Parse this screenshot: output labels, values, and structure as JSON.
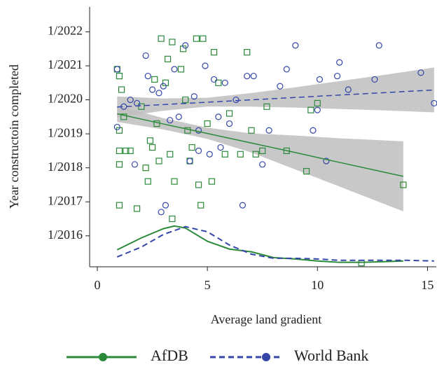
{
  "chart_data": {
    "type": "scatter",
    "x_label": "Average land gradient",
    "y_label": "Year constructoin completed",
    "xlim": [
      -0.35,
      15.4
    ],
    "ylim": [
      2015.09,
      2022.73
    ],
    "xticks": [
      0,
      5,
      10,
      15
    ],
    "yticks": [
      {
        "value": 2016,
        "label": "1/2016"
      },
      {
        "value": 2017,
        "label": "1/2017"
      },
      {
        "value": 2018,
        "label": "1/2018"
      },
      {
        "value": 2019,
        "label": "1/2019"
      },
      {
        "value": 2020,
        "label": "1/2020"
      },
      {
        "value": 2021,
        "label": "1/2021"
      },
      {
        "value": 2022,
        "label": "1/2022"
      }
    ],
    "band_color": "#bebebe",
    "series": [
      {
        "name": "AfDB",
        "color": "#2a8a3a",
        "marker": "square",
        "line_style": "solid",
        "x": [
          0.9,
          1,
          1.1,
          1,
          1.2,
          1,
          1.3,
          1,
          1,
          1.8,
          2.2,
          2.3,
          2.5,
          2.7,
          2.8,
          2.9,
          3.1,
          3.2,
          3.4,
          3.3,
          3.5,
          3.4,
          3.8,
          3.9,
          4,
          4.1,
          4.2,
          4.3,
          4.5,
          4.6,
          4.8,
          4.7,
          5,
          5.2,
          5.3,
          5.5,
          5.8,
          6,
          6.5,
          6.8,
          7,
          7.2,
          7.5,
          7.7,
          8.6,
          9.5,
          9.7,
          10,
          12,
          13.9,
          2,
          2.6,
          1.5,
          2.4
        ],
        "values": [
          2020.9,
          2020.7,
          2020.3,
          2019.1,
          2019.5,
          2018.5,
          2018.5,
          2018.1,
          2016.9,
          2016.8,
          2018.0,
          2017.6,
          2018.6,
          2019.3,
          2018.2,
          2021.8,
          2020.5,
          2021.2,
          2021.7,
          2018.4,
          2017.6,
          2016.5,
          2020.9,
          2021.5,
          2020,
          2019.1,
          2018.2,
          2018.6,
          2021.8,
          2017.5,
          2021.8,
          2016.9,
          2019.3,
          2017.6,
          2021.4,
          2020.5,
          2018.4,
          2019.6,
          2018.4,
          2021.4,
          2019.1,
          2018.4,
          2018.5,
          2019.8,
          2018.5,
          2017.9,
          2019.7,
          2019.9,
          2015.2,
          2017.5,
          2019.8,
          2020.6,
          2018.5,
          2018.8
        ],
        "fit": {
          "x": [
            0.9,
            3,
            5,
            7,
            9,
            11,
            13.9
          ],
          "values": [
            2019.59,
            2019.29,
            2019.01,
            2018.73,
            2018.45,
            2018.16,
            2017.75
          ],
          "lower": [
            2019.35,
            2019.13,
            2018.85,
            2018.45,
            2017.95,
            2017.45,
            2016.72
          ],
          "upper": [
            2019.83,
            2019.46,
            2019.18,
            2019.01,
            2018.95,
            2018.87,
            2018.78
          ]
        },
        "density": {
          "x": [
            0.9,
            2,
            3,
            3.5,
            4,
            5,
            6,
            7,
            8,
            9,
            10,
            11,
            12,
            13,
            13.9
          ],
          "values": [
            2015.59,
            2015.94,
            2016.21,
            2016.29,
            2016.23,
            2015.84,
            2015.61,
            2015.53,
            2015.36,
            2015.32,
            2015.26,
            2015.22,
            2015.22,
            2015.24,
            2015.26
          ]
        }
      },
      {
        "name": "World Bank",
        "color": "#3446a8",
        "marker": "circle",
        "line_style": "dashed",
        "x": [
          0.9,
          0.9,
          1.2,
          1.5,
          1.8,
          2.2,
          2.5,
          2.8,
          2.9,
          3.1,
          3.3,
          3.5,
          3.7,
          4,
          4.2,
          4.4,
          4.6,
          4.9,
          5.1,
          5.3,
          5.6,
          5.8,
          6,
          6.3,
          6.6,
          6.8,
          7.1,
          7.5,
          7.8,
          8.3,
          8.6,
          9,
          9.8,
          10,
          10.1,
          10.4,
          10.9,
          11,
          11.4,
          12.6,
          12.8,
          14.7,
          15.3,
          1.7,
          2.3,
          4.6,
          3,
          5.5
        ],
        "values": [
          2019.2,
          2020.9,
          2019.8,
          2020,
          2019.9,
          2021.3,
          2020.3,
          2020.2,
          2016.7,
          2016.9,
          2019.4,
          2020.9,
          2019.5,
          2021.6,
          2018.2,
          2020.1,
          2019.1,
          2021,
          2018.4,
          2020.6,
          2018.6,
          2020.5,
          2019.3,
          2020,
          2016.9,
          2020.7,
          2020.7,
          2018.1,
          2019.1,
          2020.4,
          2020.9,
          2021.6,
          2019.1,
          2019.7,
          2020.6,
          2018.2,
          2020.7,
          2021.1,
          2020.3,
          2020.6,
          2021.6,
          2020.8,
          2019.9,
          2018.1,
          2020.7,
          2018.5,
          2020.4,
          2019.5
        ],
        "fit": {
          "x": [
            0.9,
            3,
            5,
            7,
            9,
            11,
            13,
            15.3
          ],
          "values": [
            2019.79,
            2019.86,
            2019.93,
            2020.0,
            2020.07,
            2020.14,
            2020.21,
            2020.29
          ],
          "lower": [
            2019.48,
            2019.68,
            2019.8,
            2019.8,
            2019.77,
            2019.73,
            2019.69,
            2019.63
          ],
          "upper": [
            2020.1,
            2020.04,
            2020.06,
            2020.2,
            2020.37,
            2020.55,
            2020.73,
            2020.95
          ]
        },
        "density": {
          "x": [
            0.9,
            2,
            3,
            4,
            5,
            6,
            7,
            8,
            9,
            10,
            11,
            12,
            13,
            14,
            15.3
          ],
          "values": [
            2015.38,
            2015.67,
            2016.04,
            2016.27,
            2016.12,
            2015.73,
            2015.46,
            2015.34,
            2015.34,
            2015.32,
            2015.28,
            2015.28,
            2015.28,
            2015.28,
            2015.26
          ]
        }
      }
    ]
  }
}
